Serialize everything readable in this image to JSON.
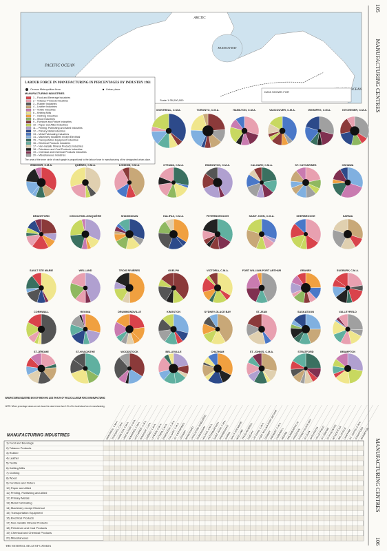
{
  "header": {
    "side_title": "MANUFACTURING CENTRES",
    "page_top": "105",
    "page_bottom": "106",
    "footer": "THE NATIONAL ATLAS OF CANADA"
  },
  "map": {
    "labels": [
      "PACIFIC OCEAN",
      "HUDSON BAY",
      "ATLANTIC OCEAN",
      "ARCTIC"
    ],
    "scale": "Scale 1:35,000,000",
    "data_box": "DATA SHOWN FOR"
  },
  "legend": {
    "title": "LABOUR FORCE IN MANUFACTURING IN PERCENTAGES BY INDUSTRY 1961",
    "cma": "Census Metropolitan Area",
    "urban": "Urban place",
    "subtitle": "MANUFACTURING INDUSTRIES",
    "items": [
      {
        "label": "1 – Food and Beverage Industries",
        "color": "#d9434b"
      },
      {
        "label": "2 – Tobacco Products Industries",
        "color": "#e8a0b0"
      },
      {
        "label": "3 – Rubber Industries",
        "color": "#555555"
      },
      {
        "label": "4 – Leather Industries",
        "color": "#c8a878"
      },
      {
        "label": "5 – Textile Industries",
        "color": "#c97bb0"
      },
      {
        "label": "6 – Knitting Mills",
        "color": "#f0e68c"
      },
      {
        "label": "7 – Clothing Industries",
        "color": "#f0a040"
      },
      {
        "label": "8 – Wood Industries",
        "color": "#8fb860"
      },
      {
        "label": "9 – Furniture and Fixture Industries",
        "color": "#8b3a3a"
      },
      {
        "label": "10 – Paper and Allied Industries",
        "color": "#c8d860"
      },
      {
        "label": "11 – Printing, Publishing and Allied Industries",
        "color": "#b0a0d0"
      },
      {
        "label": "12 – Primary Metal Industries",
        "color": "#2d4a8a"
      },
      {
        "label": "13 – Metal Fabricating Industries",
        "color": "#4a78c8"
      },
      {
        "label": "14 – Machinery Industries except Electrical",
        "color": "#80b0e0"
      },
      {
        "label": "15 – Transportation Equipment Industries",
        "color": "#3a7060"
      },
      {
        "label": "16 – Electrical Products Industries",
        "color": "#60b0a0"
      },
      {
        "label": "17 – Non-metallic Mineral Products Industries",
        "color": "#e0d0b0"
      },
      {
        "label": "18 – Petroleum and Coal Products Industries",
        "color": "#222222"
      },
      {
        "label": "19 – Chemical and Chemical Products Industries",
        "color": "#803050"
      },
      {
        "label": "20 – Miscellaneous Industries",
        "color": "#a0a0a0"
      }
    ],
    "note": "The area of the inner circle of each graph is proportional to the labour force in manufacturing of the designated urban place."
  },
  "cities": [
    [
      "MONTREAL, C.M.A.",
      "TORONTO, C.M.A.",
      "HAMILTON, C.M.A.",
      "VANCOUVER, C.M.A.",
      "WINNIPEG, C.M.A.",
      "KITCHENER, C.M.A."
    ],
    [
      "WINDSOR, C.M.A.",
      "QUÉBEC, C.M.A.",
      "LONDON, C.M.A.",
      "OTTAWA, C.M.A.",
      "EDMONTON, C.M.A.",
      "CALGARY, C.M.A.",
      "ST. CATHARINES",
      "OSHAWA"
    ],
    [
      "BRANTFORD",
      "CHICOUTIMI-JONQUIÈRE",
      "SHAWINIGAN",
      "HALIFAX, C.M.A.",
      "PETERBOROUGH",
      "SAINT JOHN, C.M.A.",
      "SHERBROOKE",
      "SARNIA"
    ],
    [
      "SAULT STE MARIE",
      "WELLAND",
      "TROIS RIVIÈRES",
      "GUELPH",
      "VICTORIA, C.M.A.",
      "FORT WILLIAM-PORT ARTHUR",
      "GRANBY",
      "SUDBURY, C.M.A."
    ],
    [
      "CORNWALL",
      "REGINA",
      "DRUMMONDVILLE",
      "KINGSTON",
      "SYDNEY-GLACE BAY",
      "ST-JEAN",
      "SASKATOON",
      "VALLEYFIELD"
    ],
    [
      "ST-JÉROME",
      "ST-HYACINTHE",
      "WOODSTOCK",
      "BELLEVILLE",
      "CHATHAM",
      "ST. JOHN'S, C.M.A.",
      "STRATFORD",
      "BRAMPTON"
    ]
  ],
  "table": {
    "title": "MANUFACTURING INDUSTRIES EACH OF WHICH HAS LESS THAN 2% OF THE LOCAL LABOUR FORCE IN MANUFACTURING",
    "note": "NOTE: Where percentage values are not shown the value is less than 0.1% of the local labour force in manufacturing.",
    "heading": "MANUFACTURING INDUSTRIES",
    "rows": [
      "1) Food and Beverage",
      "2) Tobacco Products",
      "3) Rubber",
      "4) Leather",
      "5) Textile",
      "6) Knitting Mills",
      "7) Clothing",
      "8) Wood",
      "9) Furniture and Fixture",
      "10) Paper and Allied",
      "11) Printing, Publishing and Allied",
      "12) Primary Metals",
      "13) Metal Fabricating",
      "14) Machinery except Electrical",
      "15) Transportation Equipment",
      "16) Electrical Products",
      "17) Non-metallic Mineral Products",
      "18) Petroleum and Coal Products",
      "19) Chemical and Chemical Products",
      "20) Miscellaneous"
    ]
  }
}
